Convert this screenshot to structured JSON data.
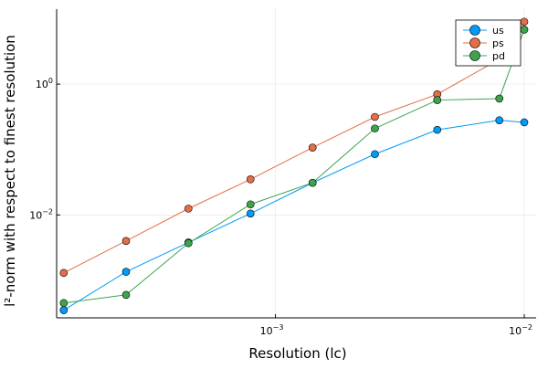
{
  "chart_data": {
    "type": "line",
    "title": "",
    "xlabel": "Resolution (lc)",
    "ylabel": "l²-norm with respect to finest resolution",
    "x_scale": "log",
    "y_scale": "log",
    "xlim": [
      0.000132,
      0.01116
    ],
    "ylim": [
      0.000267,
      14.0
    ],
    "x_ticks": [
      {
        "value": 0.001,
        "base": "10",
        "exp": "−3"
      },
      {
        "value": 0.01,
        "base": "10",
        "exp": "−2"
      }
    ],
    "y_ticks": [
      {
        "value": 0.01,
        "base": "10",
        "exp": "−2"
      },
      {
        "value": 1,
        "base": "10",
        "exp": "0"
      }
    ],
    "grid": true,
    "legend_position": "top-right",
    "x": [
      0.000141,
      0.000251,
      0.000447,
      0.000794,
      0.00141,
      0.00251,
      0.00447,
      0.00794,
      0.01
    ],
    "series": [
      {
        "name": "us",
        "color": "#009af9",
        "marker": "circle",
        "values": [
          0.00035,
          0.00135,
          0.0038,
          0.0105,
          0.031,
          0.085,
          0.2,
          0.28,
          0.26
        ]
      },
      {
        "name": "ps",
        "color": "#e26f46",
        "marker": "circle",
        "values": [
          0.0013,
          0.004,
          0.0125,
          0.035,
          0.107,
          0.315,
          0.7,
          2.4,
          9.0
        ]
      },
      {
        "name": "pd",
        "color": "#3da44d",
        "marker": "circle",
        "values": [
          0.00045,
          0.0006,
          0.0037,
          0.0145,
          0.031,
          0.21,
          0.57,
          0.6,
          6.8
        ]
      }
    ]
  }
}
